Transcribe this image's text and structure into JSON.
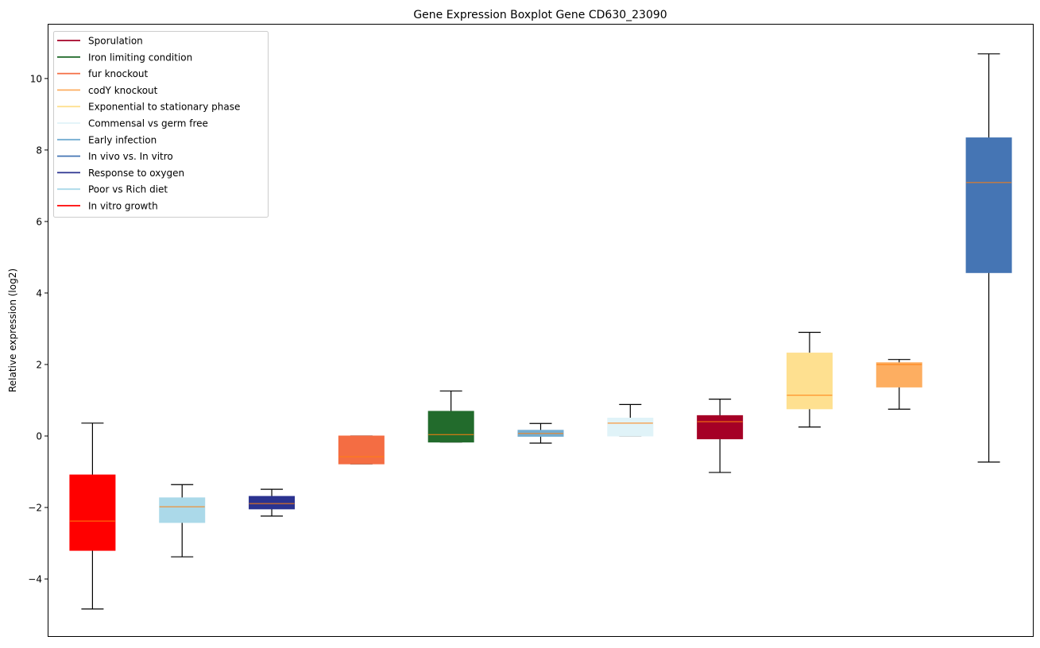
{
  "chart_data": {
    "type": "boxplot",
    "title": "Gene Expression Boxplot Gene CD630_23090",
    "xlabel": "",
    "ylabel": "Relative expression (log2)",
    "ylim": [
      -5.62,
      11.53
    ],
    "yticks": [
      -4,
      -2,
      0,
      2,
      4,
      6,
      8,
      10
    ],
    "ytick_labels": [
      "−4",
      "−2",
      "0",
      "2",
      "4",
      "6",
      "8",
      "10"
    ],
    "grid": false,
    "legend_position": "top-left",
    "median_color": "#ff7f0e",
    "legend": [
      {
        "label": "Sporulation",
        "color": "#a50026"
      },
      {
        "label": "Iron limiting condition",
        "color": "#226b2c"
      },
      {
        "label": "fur knockout",
        "color": "#f46d43"
      },
      {
        "label": "codY knockout",
        "color": "#fdae61"
      },
      {
        "label": "Exponential to stationary phase",
        "color": "#fee090"
      },
      {
        "label": "Commensal vs germ free",
        "color": "#e0f3f8"
      },
      {
        "label": "Early infection",
        "color": "#74add1"
      },
      {
        "label": "In vivo vs. In vitro",
        "color": "#4575b4"
      },
      {
        "label": "Response to oxygen",
        "color": "#2b3390"
      },
      {
        "label": "Poor vs Rich diet",
        "color": "#abd9e9"
      },
      {
        "label": "In vitro growth",
        "color": "#ff0000"
      }
    ],
    "boxes": [
      {
        "name": "In vitro growth",
        "color": "#ff0000",
        "min": -4.84,
        "q1": -3.2,
        "median": -2.38,
        "q3": -1.09,
        "max": 0.36
      },
      {
        "name": "Poor vs Rich diet",
        "color": "#abd9e9",
        "min": -3.38,
        "q1": -2.42,
        "median": -1.98,
        "q3": -1.73,
        "max": -1.36
      },
      {
        "name": "Response to oxygen",
        "color": "#2b3390",
        "min": -2.24,
        "q1": -2.04,
        "median": -1.89,
        "q3": -1.69,
        "max": -1.49
      },
      {
        "name": "fur knockout",
        "color": "#f46d43",
        "min": -0.78,
        "q1": -0.78,
        "median": -0.58,
        "q3": 0.0,
        "max": 0.0
      },
      {
        "name": "Iron limiting condition",
        "color": "#226b2c",
        "min": -0.17,
        "q1": -0.17,
        "median": 0.04,
        "q3": 0.69,
        "max": 1.26
      },
      {
        "name": "Early infection",
        "color": "#74add1",
        "min": -0.2,
        "q1": -0.01,
        "median": 0.07,
        "q3": 0.16,
        "max": 0.35
      },
      {
        "name": "Commensal vs germ free",
        "color": "#e0f3f8",
        "min": 0.0,
        "q1": 0.0,
        "median": 0.36,
        "q3": 0.5,
        "max": 0.88
      },
      {
        "name": "Sporulation",
        "color": "#a50026",
        "min": -1.02,
        "q1": -0.08,
        "median": 0.4,
        "q3": 0.57,
        "max": 1.03
      },
      {
        "name": "Exponential to stationary phase",
        "color": "#fee090",
        "min": 0.25,
        "q1": 0.76,
        "median": 1.14,
        "q3": 2.32,
        "max": 2.9
      },
      {
        "name": "codY knockout",
        "color": "#fdae61",
        "min": 0.75,
        "q1": 1.37,
        "median": 2.0,
        "q3": 2.05,
        "max": 2.14
      },
      {
        "name": "In vivo vs. In vitro",
        "color": "#4575b4",
        "min": -0.73,
        "q1": 4.57,
        "median": 7.09,
        "q3": 8.34,
        "max": 10.69
      }
    ]
  }
}
